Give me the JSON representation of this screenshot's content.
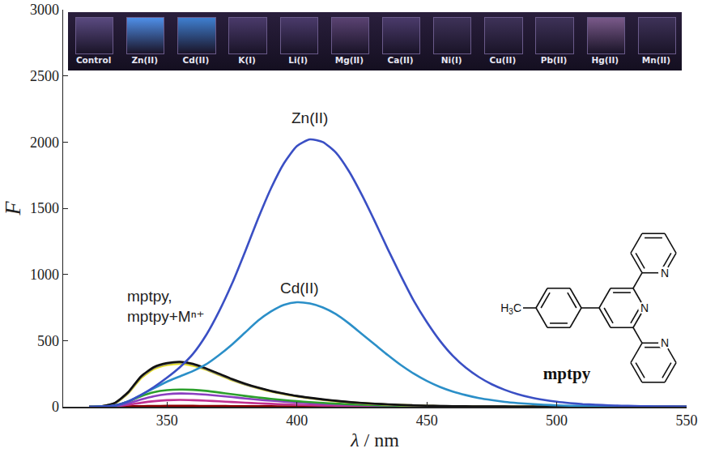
{
  "chart_data": {
    "type": "line",
    "x_label": "λ / nm",
    "y_label": "F",
    "xlim": [
      310,
      550
    ],
    "xticks": [
      350,
      400,
      450,
      500,
      550
    ],
    "ylim": [
      0,
      3000
    ],
    "yticks": [
      0,
      500,
      1000,
      1500,
      2000,
      2500,
      3000
    ],
    "grid": false,
    "x": [
      320,
      325,
      330,
      335,
      340,
      345,
      350,
      355,
      360,
      365,
      370,
      375,
      380,
      385,
      390,
      395,
      400,
      405,
      410,
      415,
      420,
      425,
      430,
      435,
      440,
      445,
      450,
      455,
      460,
      465,
      470,
      475,
      480,
      485,
      490,
      495,
      500,
      505,
      510,
      515,
      520,
      525,
      530,
      535,
      540,
      545,
      550
    ],
    "series": [
      {
        "color": "#8b0000",
        "values": [
          0,
          0,
          1,
          3,
          5,
          6,
          7,
          7,
          7,
          6,
          6,
          5,
          5,
          4,
          4,
          3,
          3,
          2,
          2,
          2,
          1,
          1,
          1,
          1,
          1,
          0,
          0,
          0,
          0,
          0,
          0,
          0,
          0,
          0,
          0,
          0,
          0,
          0,
          0,
          0,
          0,
          0,
          0,
          0,
          0,
          0,
          0
        ]
      },
      {
        "color": "#c03090",
        "values": [
          0,
          1,
          4,
          15,
          30,
          42,
          50,
          52,
          50,
          46,
          41,
          36,
          31,
          26,
          22,
          18,
          15,
          12,
          10,
          8,
          6,
          5,
          4,
          3,
          2,
          2,
          1,
          1,
          1,
          0,
          0,
          0,
          0,
          0,
          0,
          0,
          0,
          0,
          0,
          0,
          0,
          0,
          0,
          0,
          0,
          0,
          0
        ]
      },
      {
        "color": "#8a3fc0",
        "values": [
          0,
          1,
          6,
          25,
          55,
          80,
          95,
          100,
          98,
          92,
          83,
          73,
          63,
          54,
          46,
          39,
          32,
          27,
          22,
          18,
          15,
          12,
          9,
          7,
          6,
          5,
          4,
          3,
          2,
          2,
          1,
          1,
          1,
          0,
          0,
          0,
          0,
          0,
          0,
          0,
          0,
          0,
          0,
          0,
          0,
          0,
          0
        ]
      },
      {
        "color": "#2ca02c",
        "values": [
          0,
          2,
          10,
          40,
          80,
          110,
          125,
          130,
          128,
          120,
          108,
          95,
          82,
          70,
          60,
          50,
          42,
          35,
          29,
          24,
          19,
          15,
          12,
          10,
          8,
          6,
          5,
          4,
          3,
          2,
          2,
          1,
          1,
          1,
          0,
          0,
          0,
          0,
          0,
          0,
          0,
          0,
          0,
          0,
          0,
          0,
          0
        ]
      },
      {
        "color": "#e8e020",
        "values": [
          0,
          4,
          25,
          100,
          215,
          285,
          315,
          325,
          310,
          280,
          240,
          200,
          168,
          140,
          115,
          95,
          78,
          64,
          52,
          42,
          34,
          27,
          21,
          16,
          13,
          10,
          7,
          5,
          4,
          3,
          2,
          2,
          1,
          1,
          1,
          0,
          0,
          0,
          0,
          0,
          0,
          0,
          0,
          0,
          0,
          0,
          0
        ]
      },
      {
        "color": "#7f7f7f",
        "values": [
          0,
          5,
          28,
          105,
          225,
          295,
          325,
          335,
          320,
          285,
          245,
          205,
          170,
          142,
          118,
          98,
          80,
          66,
          54,
          44,
          35,
          28,
          22,
          17,
          13,
          10,
          8,
          6,
          4,
          3,
          2,
          2,
          1,
          1,
          1,
          0,
          0,
          0,
          0,
          0,
          0,
          0,
          0,
          0,
          0,
          0,
          0
        ]
      },
      {
        "color": "#111111",
        "values": [
          0,
          5,
          30,
          110,
          230,
          300,
          330,
          340,
          325,
          290,
          250,
          210,
          175,
          145,
          120,
          100,
          82,
          68,
          56,
          45,
          36,
          29,
          23,
          18,
          14,
          11,
          8,
          6,
          5,
          4,
          3,
          2,
          2,
          1,
          1,
          1,
          0,
          0,
          0,
          0,
          0,
          0,
          0,
          0,
          0,
          0,
          0
        ]
      },
      {
        "name": "Cd(II)",
        "color": "#2b8fc8",
        "values": [
          0,
          2,
          10,
          40,
          90,
          140,
          190,
          230,
          270,
          320,
          390,
          470,
          560,
          650,
          720,
          770,
          790,
          780,
          750,
          700,
          630,
          550,
          470,
          390,
          315,
          250,
          195,
          150,
          115,
          88,
          66,
          50,
          37,
          28,
          21,
          15,
          11,
          8,
          6,
          4,
          3,
          2,
          1,
          1,
          0,
          0,
          0
        ]
      },
      {
        "name": "Zn(II)",
        "color": "#3a4fc4",
        "values": [
          0,
          2,
          10,
          40,
          90,
          150,
          220,
          300,
          400,
          540,
          720,
          930,
          1170,
          1420,
          1650,
          1840,
          1970,
          2020,
          2000,
          1920,
          1780,
          1600,
          1400,
          1190,
          990,
          800,
          640,
          500,
          385,
          295,
          225,
          170,
          128,
          95,
          70,
          52,
          38,
          28,
          20,
          15,
          11,
          8,
          6,
          4,
          3,
          2,
          1
        ]
      }
    ],
    "annotations": [
      {
        "text": "Zn(II)",
        "x": 405,
        "y": 2180
      },
      {
        "text": "Cd(II)",
        "x": 401,
        "y": 900
      },
      {
        "text": "mptpy, mptpy+Mⁿ⁺",
        "x": 334,
        "y": 760
      }
    ],
    "inset": {
      "labels": [
        "Control",
        "Zn(II)",
        "Cd(II)",
        "K(I)",
        "Li(I)",
        "Mg(II)",
        "Ca(II)",
        "Ni(I)",
        "Cu(II)",
        "Pb(II)",
        "Hg(II)",
        "Mn(II)"
      ]
    },
    "structure": {
      "name": "mptpy",
      "methyl": "H3C",
      "atom": "N"
    }
  }
}
